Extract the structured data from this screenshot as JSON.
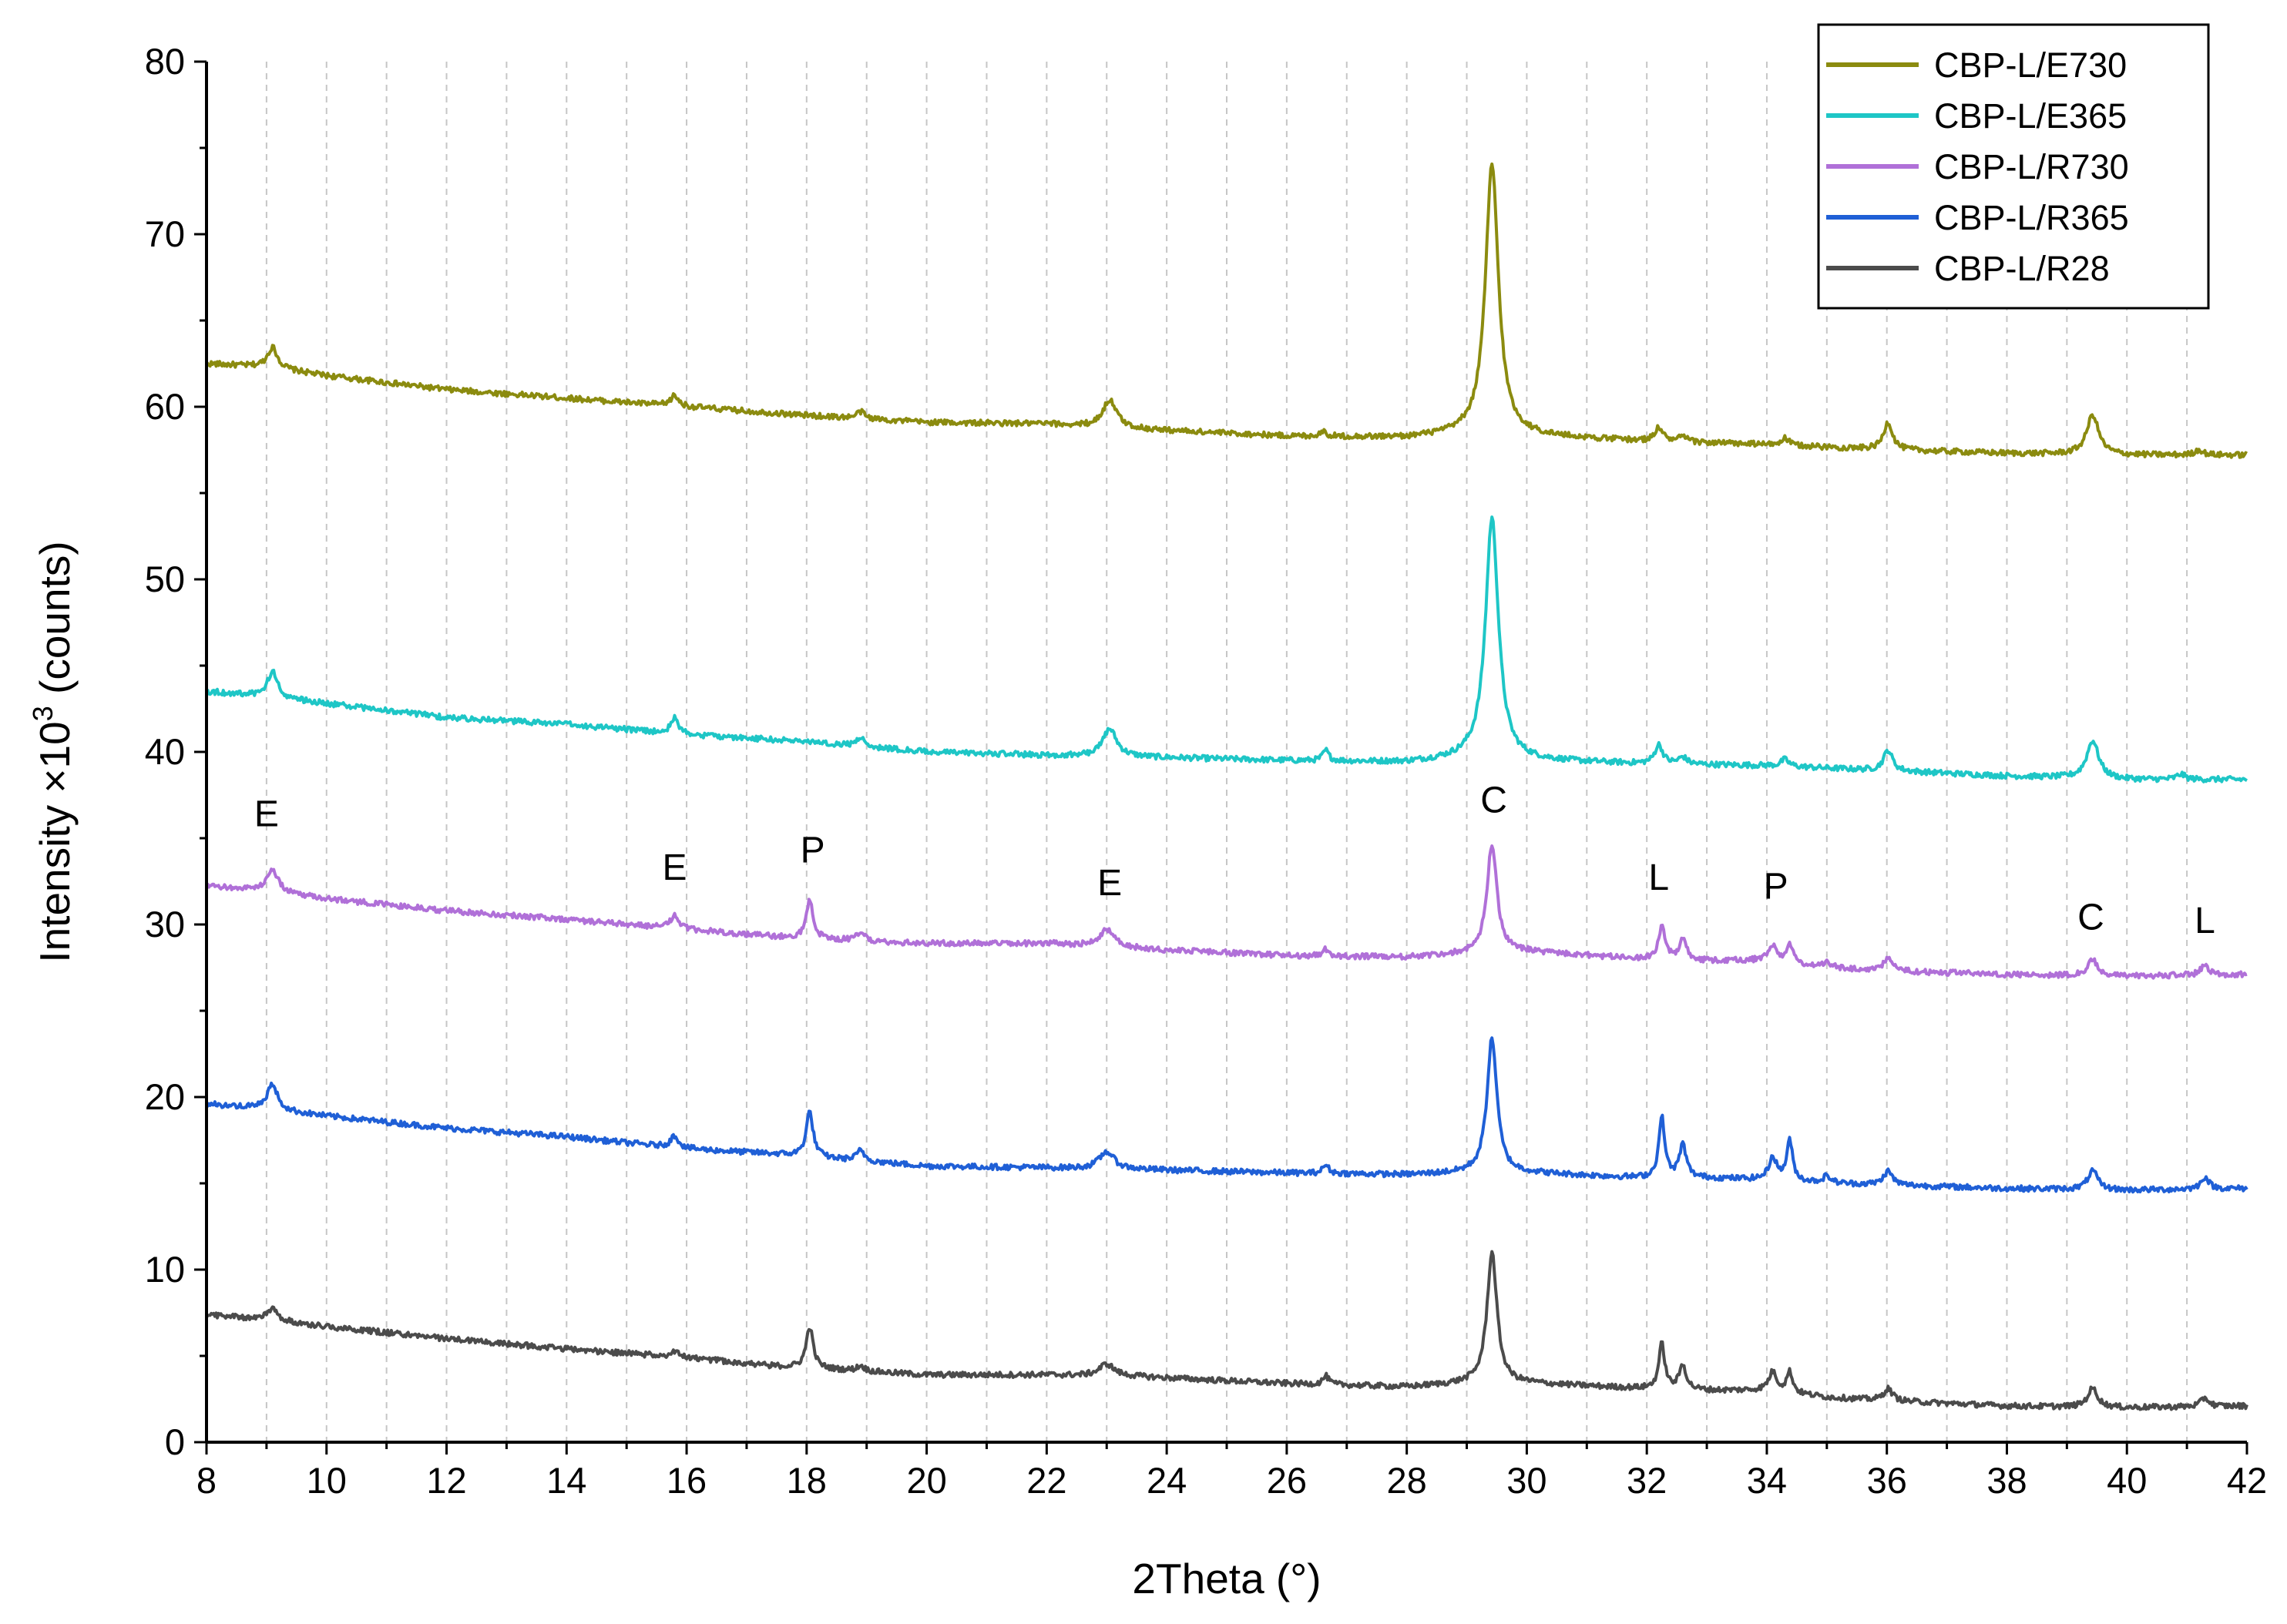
{
  "chart_data": {
    "type": "line",
    "title": "",
    "xlabel": "2Theta (°)",
    "ylabel_main": "Intensity ×10",
    "ylabel_sup": "3",
    "ylabel_tail": " (counts)",
    "xlim": [
      8,
      42
    ],
    "ylim": [
      0,
      80
    ],
    "x_ticks": [
      "8",
      "10",
      "12",
      "14",
      "16",
      "18",
      "20",
      "22",
      "24",
      "26",
      "28",
      "30",
      "32",
      "34",
      "36",
      "38",
      "40",
      "42"
    ],
    "y_ticks": [
      "0",
      "10",
      "20",
      "30",
      "40",
      "50",
      "60",
      "70",
      "80"
    ],
    "grid": "vertical dashed lines at every 1°",
    "legend_position": "top-right",
    "series": [
      {
        "name": "CBP-L/E730",
        "color": "#8b8b0f",
        "baseline": [
          [
            8,
            62.5
          ],
          [
            9,
            62.3
          ],
          [
            10,
            61.8
          ],
          [
            12,
            61.0
          ],
          [
            14,
            60.5
          ],
          [
            16,
            60.0
          ],
          [
            18,
            59.5
          ],
          [
            20,
            59.1
          ],
          [
            22,
            59.0
          ],
          [
            23.5,
            58.7
          ],
          [
            26,
            58.3
          ],
          [
            28,
            58.2
          ],
          [
            29,
            58.4
          ],
          [
            30,
            58.3
          ],
          [
            32,
            58.0
          ],
          [
            34,
            57.8
          ],
          [
            36,
            57.5
          ],
          [
            38,
            57.3
          ],
          [
            40,
            57.2
          ],
          [
            42,
            57.2
          ]
        ],
        "peaks": [
          [
            9.1,
            1.2,
            0.1
          ],
          [
            15.8,
            0.6,
            0.08
          ],
          [
            18.9,
            0.4,
            0.08
          ],
          [
            23.05,
            1.6,
            0.14
          ],
          [
            26.6,
            0.3,
            0.06
          ],
          [
            29.42,
            15.7,
            0.13
          ],
          [
            32.2,
            0.8,
            0.08
          ],
          [
            32.6,
            0.3,
            0.08
          ],
          [
            34.3,
            0.4,
            0.08
          ],
          [
            36.02,
            1.6,
            0.09
          ],
          [
            39.43,
            2.3,
            0.12
          ],
          [
            41.2,
            0.3,
            0.08
          ]
        ]
      },
      {
        "name": "CBP-L/E365",
        "color": "#1ec6c6",
        "baseline": [
          [
            8,
            43.5
          ],
          [
            9,
            43.2
          ],
          [
            10,
            42.8
          ],
          [
            12,
            42.0
          ],
          [
            14,
            41.6
          ],
          [
            16,
            41.0
          ],
          [
            18,
            40.6
          ],
          [
            20,
            40.0
          ],
          [
            22,
            39.8
          ],
          [
            23.5,
            39.7
          ],
          [
            26,
            39.5
          ],
          [
            28,
            39.4
          ],
          [
            29,
            39.6
          ],
          [
            30,
            39.5
          ],
          [
            32,
            39.3
          ],
          [
            34,
            39.2
          ],
          [
            36,
            38.9
          ],
          [
            38,
            38.6
          ],
          [
            40,
            38.4
          ],
          [
            42,
            38.4
          ]
        ],
        "peaks": [
          [
            9.1,
            1.5,
            0.1
          ],
          [
            15.8,
            0.9,
            0.08
          ],
          [
            18.9,
            0.5,
            0.08
          ],
          [
            23.05,
            1.6,
            0.14
          ],
          [
            26.65,
            0.6,
            0.06
          ],
          [
            29.42,
            14.0,
            0.13
          ],
          [
            32.2,
            1.1,
            0.08
          ],
          [
            32.6,
            0.4,
            0.08
          ],
          [
            34.3,
            0.4,
            0.08
          ],
          [
            36.02,
            1.2,
            0.09
          ],
          [
            39.43,
            2.2,
            0.12
          ],
          [
            40.9,
            0.3,
            0.08
          ]
        ]
      },
      {
        "name": "CBP-L/R730",
        "color": "#b070d8",
        "baseline": [
          [
            8,
            32.2
          ],
          [
            9,
            32.0
          ],
          [
            10,
            31.5
          ],
          [
            12,
            30.8
          ],
          [
            14,
            30.3
          ],
          [
            16,
            29.7
          ],
          [
            17.5,
            29.3
          ],
          [
            18.5,
            29.1
          ],
          [
            20,
            28.9
          ],
          [
            22,
            28.9
          ],
          [
            23.5,
            28.6
          ],
          [
            26,
            28.2
          ],
          [
            28,
            28.1
          ],
          [
            29,
            28.3
          ],
          [
            30,
            28.4
          ],
          [
            32,
            28.0
          ],
          [
            33,
            27.9
          ],
          [
            34,
            27.9
          ],
          [
            35,
            27.5
          ],
          [
            36,
            27.3
          ],
          [
            38,
            27.1
          ],
          [
            40,
            27.0
          ],
          [
            42,
            27.1
          ]
        ],
        "peaks": [
          [
            9.1,
            1.3,
            0.1
          ],
          [
            15.8,
            0.8,
            0.08
          ],
          [
            18.05,
            2.2,
            0.07
          ],
          [
            18.9,
            0.5,
            0.08
          ],
          [
            23.0,
            1.0,
            0.15
          ],
          [
            26.65,
            0.4,
            0.06
          ],
          [
            29.42,
            6.3,
            0.1
          ],
          [
            32.25,
            1.8,
            0.07
          ],
          [
            32.6,
            1.2,
            0.07
          ],
          [
            34.1,
            0.9,
            0.09
          ],
          [
            34.38,
            1.1,
            0.06
          ],
          [
            35.0,
            0.3,
            0.08
          ],
          [
            36.02,
            0.7,
            0.09
          ],
          [
            39.43,
            0.9,
            0.1
          ],
          [
            41.3,
            0.6,
            0.08
          ]
        ],
        "labels": [
          {
            "text": "E",
            "x": 9.0,
            "y": 35.7
          },
          {
            "text": "E",
            "x": 15.8,
            "y": 32.6
          },
          {
            "text": "P",
            "x": 18.1,
            "y": 33.6
          },
          {
            "text": "E",
            "x": 23.05,
            "y": 31.7
          },
          {
            "text": "C",
            "x": 29.45,
            "y": 36.5
          },
          {
            "text": "L",
            "x": 32.2,
            "y": 32.0
          },
          {
            "text": "P",
            "x": 34.15,
            "y": 31.5
          },
          {
            "text": "C",
            "x": 39.4,
            "y": 29.7
          },
          {
            "text": "L",
            "x": 41.3,
            "y": 29.5
          }
        ]
      },
      {
        "name": "CBP-L/R365",
        "color": "#1f5fd6",
        "baseline": [
          [
            8,
            19.6
          ],
          [
            9,
            19.3
          ],
          [
            10,
            18.9
          ],
          [
            12,
            18.2
          ],
          [
            14,
            17.7
          ],
          [
            16,
            17.0
          ],
          [
            17.5,
            16.7
          ],
          [
            18.5,
            16.4
          ],
          [
            20,
            16.0
          ],
          [
            22,
            15.9
          ],
          [
            23.5,
            15.8
          ],
          [
            26,
            15.6
          ],
          [
            28,
            15.5
          ],
          [
            29,
            15.6
          ],
          [
            30,
            15.6
          ],
          [
            32,
            15.3
          ],
          [
            33,
            15.3
          ],
          [
            34,
            15.2
          ],
          [
            35,
            15.0
          ],
          [
            36,
            14.9
          ],
          [
            38,
            14.7
          ],
          [
            40,
            14.6
          ],
          [
            42,
            14.7
          ]
        ],
        "peaks": [
          [
            9.1,
            1.5,
            0.1
          ],
          [
            15.8,
            0.7,
            0.08
          ],
          [
            18.05,
            2.6,
            0.07
          ],
          [
            18.9,
            0.6,
            0.08
          ],
          [
            23.0,
            1.0,
            0.15
          ],
          [
            26.65,
            0.5,
            0.06
          ],
          [
            29.42,
            7.8,
            0.1
          ],
          [
            32.25,
            3.5,
            0.06
          ],
          [
            32.6,
            1.9,
            0.07
          ],
          [
            34.1,
            1.3,
            0.08
          ],
          [
            34.38,
            2.3,
            0.06
          ],
          [
            35.0,
            0.4,
            0.08
          ],
          [
            36.02,
            0.8,
            0.09
          ],
          [
            39.43,
            1.1,
            0.1
          ],
          [
            41.3,
            0.7,
            0.08
          ]
        ]
      },
      {
        "name": "CBP-L/R28",
        "color": "#4b4b4b",
        "baseline": [
          [
            8,
            7.4
          ],
          [
            9,
            7.1
          ],
          [
            10,
            6.7
          ],
          [
            12,
            6.0
          ],
          [
            14,
            5.4
          ],
          [
            16,
            4.9
          ],
          [
            17.5,
            4.4
          ],
          [
            18.5,
            4.2
          ],
          [
            20,
            3.9
          ],
          [
            22,
            3.9
          ],
          [
            23.5,
            3.8
          ],
          [
            26,
            3.4
          ],
          [
            28,
            3.2
          ],
          [
            29,
            3.4
          ],
          [
            30,
            3.4
          ],
          [
            32,
            3.1
          ],
          [
            33,
            3.0
          ],
          [
            34,
            3.0
          ],
          [
            35,
            2.6
          ],
          [
            36,
            2.4
          ],
          [
            38,
            2.1
          ],
          [
            40,
            2.0
          ],
          [
            42,
            2.1
          ]
        ],
        "peaks": [
          [
            9.1,
            0.7,
            0.1
          ],
          [
            15.8,
            0.3,
            0.08
          ],
          [
            18.05,
            2.4,
            0.07
          ],
          [
            18.9,
            0.3,
            0.08
          ],
          [
            23.0,
            0.7,
            0.15
          ],
          [
            26.65,
            0.5,
            0.06
          ],
          [
            29.42,
            7.6,
            0.1
          ],
          [
            32.25,
            2.6,
            0.06
          ],
          [
            32.6,
            1.4,
            0.07
          ],
          [
            34.1,
            1.1,
            0.08
          ],
          [
            34.38,
            1.2,
            0.06
          ],
          [
            36.02,
            0.7,
            0.09
          ],
          [
            39.43,
            1.1,
            0.1
          ],
          [
            41.3,
            0.5,
            0.08
          ]
        ]
      }
    ]
  }
}
